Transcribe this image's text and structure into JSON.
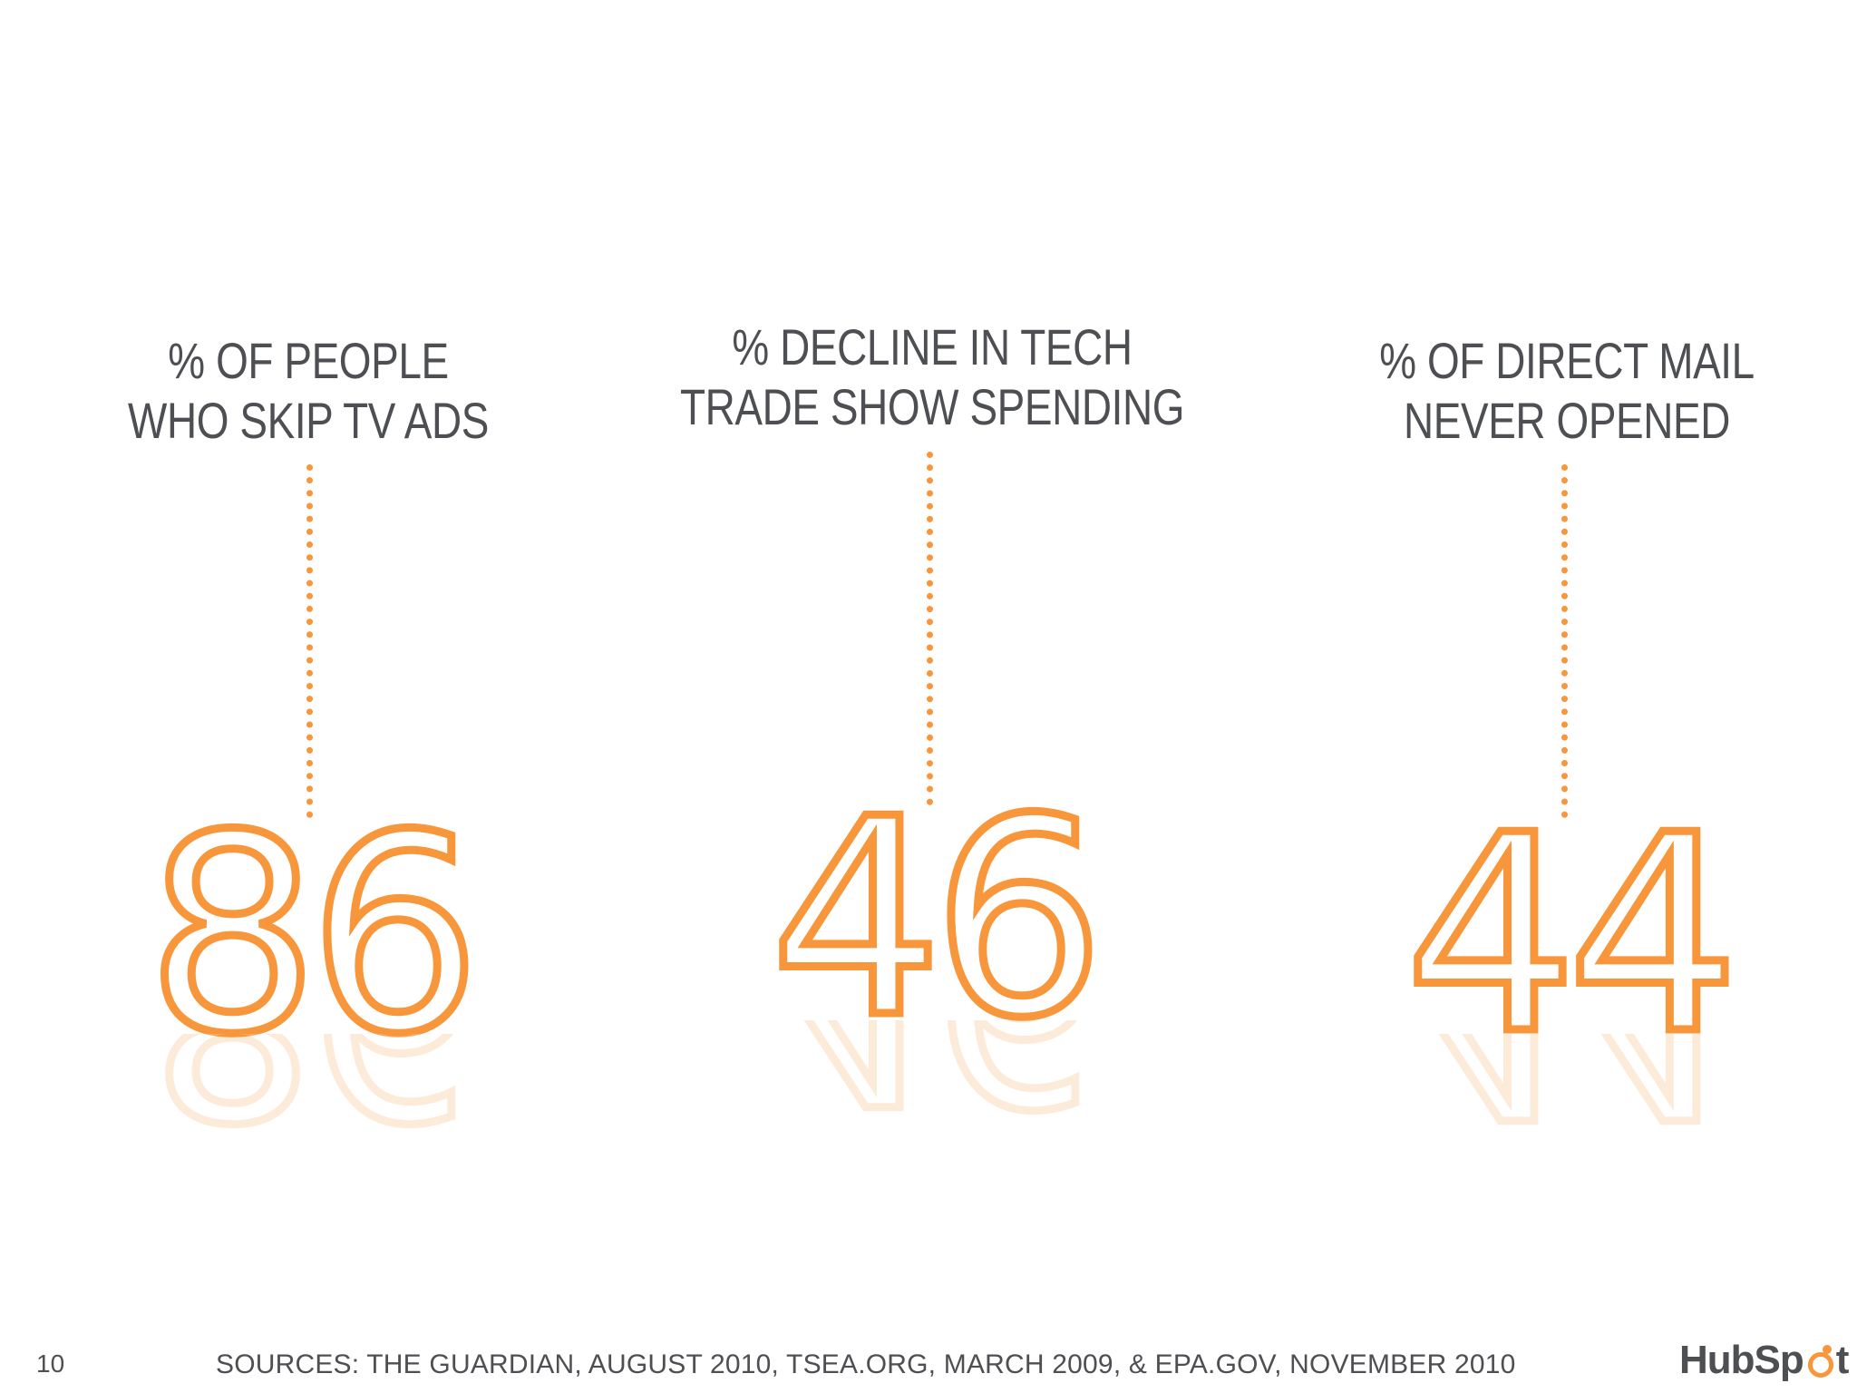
{
  "stats": [
    {
      "label_lines": [
        "% OF PEOPLE",
        "WHO SKIP TV ADS"
      ],
      "value": "86"
    },
    {
      "label_lines": [
        "% DECLINE IN TECH",
        "TRADE SHOW SPENDING"
      ],
      "value": "46"
    },
    {
      "label_lines": [
        "% OF DIRECT MAIL",
        "NEVER OPENED"
      ],
      "value": "44"
    }
  ],
  "footer": {
    "slide_number": "10",
    "sources": "SOURCES: THE GUARDIAN, AUGUST 2010, TSEA.ORG, MARCH 2009, &  EPA.GOV, NOVEMBER 2010"
  },
  "logo": {
    "text_before": "HubSp",
    "text_after": "t",
    "full_text": "HubSpot"
  },
  "colors": {
    "accent": "#f7963a",
    "text": "#4d4f53",
    "background": "#ffffff"
  }
}
